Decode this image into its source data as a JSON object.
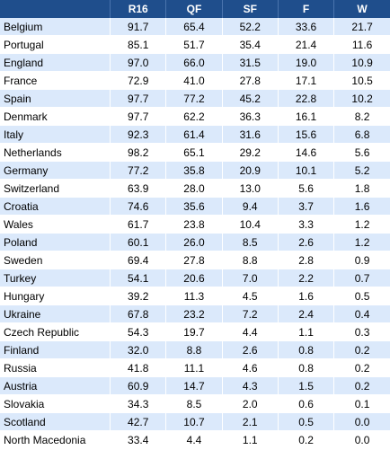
{
  "table": {
    "columns": [
      "",
      "R16",
      "QF",
      "SF",
      "F",
      "W"
    ],
    "rows": [
      {
        "team": "Belgium",
        "r16": "91.7",
        "qf": "65.4",
        "sf": "52.2",
        "f": "33.6",
        "w": "21.7"
      },
      {
        "team": "Portugal",
        "r16": "85.1",
        "qf": "51.7",
        "sf": "35.4",
        "f": "21.4",
        "w": "11.6"
      },
      {
        "team": "England",
        "r16": "97.0",
        "qf": "66.0",
        "sf": "31.5",
        "f": "19.0",
        "w": "10.9"
      },
      {
        "team": "France",
        "r16": "72.9",
        "qf": "41.0",
        "sf": "27.8",
        "f": "17.1",
        "w": "10.5"
      },
      {
        "team": "Spain",
        "r16": "97.7",
        "qf": "77.2",
        "sf": "45.2",
        "f": "22.8",
        "w": "10.2"
      },
      {
        "team": "Denmark",
        "r16": "97.7",
        "qf": "62.2",
        "sf": "36.3",
        "f": "16.1",
        "w": "8.2"
      },
      {
        "team": "Italy",
        "r16": "92.3",
        "qf": "61.4",
        "sf": "31.6",
        "f": "15.6",
        "w": "6.8"
      },
      {
        "team": "Netherlands",
        "r16": "98.2",
        "qf": "65.1",
        "sf": "29.2",
        "f": "14.6",
        "w": "5.6"
      },
      {
        "team": "Germany",
        "r16": "77.2",
        "qf": "35.8",
        "sf": "20.9",
        "f": "10.1",
        "w": "5.2"
      },
      {
        "team": "Switzerland",
        "r16": "63.9",
        "qf": "28.0",
        "sf": "13.0",
        "f": "5.6",
        "w": "1.8"
      },
      {
        "team": "Croatia",
        "r16": "74.6",
        "qf": "35.6",
        "sf": "9.4",
        "f": "3.7",
        "w": "1.6"
      },
      {
        "team": "Wales",
        "r16": "61.7",
        "qf": "23.8",
        "sf": "10.4",
        "f": "3.3",
        "w": "1.2"
      },
      {
        "team": "Poland",
        "r16": "60.1",
        "qf": "26.0",
        "sf": "8.5",
        "f": "2.6",
        "w": "1.2"
      },
      {
        "team": "Sweden",
        "r16": "69.4",
        "qf": "27.8",
        "sf": "8.8",
        "f": "2.8",
        "w": "0.9"
      },
      {
        "team": "Turkey",
        "r16": "54.1",
        "qf": "20.6",
        "sf": "7.0",
        "f": "2.2",
        "w": "0.7"
      },
      {
        "team": "Hungary",
        "r16": "39.2",
        "qf": "11.3",
        "sf": "4.5",
        "f": "1.6",
        "w": "0.5"
      },
      {
        "team": "Ukraine",
        "r16": "67.8",
        "qf": "23.2",
        "sf": "7.2",
        "f": "2.4",
        "w": "0.4"
      },
      {
        "team": "Czech Republic",
        "r16": "54.3",
        "qf": "19.7",
        "sf": "4.4",
        "f": "1.1",
        "w": "0.3"
      },
      {
        "team": "Finland",
        "r16": "32.0",
        "qf": "8.8",
        "sf": "2.6",
        "f": "0.8",
        "w": "0.2"
      },
      {
        "team": "Russia",
        "r16": "41.8",
        "qf": "11.1",
        "sf": "4.6",
        "f": "0.8",
        "w": "0.2"
      },
      {
        "team": "Austria",
        "r16": "60.9",
        "qf": "14.7",
        "sf": "4.3",
        "f": "1.5",
        "w": "0.2"
      },
      {
        "team": "Slovakia",
        "r16": "34.3",
        "qf": "8.5",
        "sf": "2.0",
        "f": "0.6",
        "w": "0.1"
      },
      {
        "team": "Scotland",
        "r16": "42.7",
        "qf": "10.7",
        "sf": "2.1",
        "f": "0.5",
        "w": "0.0"
      },
      {
        "team": "North Macedonia",
        "r16": "33.4",
        "qf": "4.4",
        "sf": "1.1",
        "f": "0.2",
        "w": "0.0"
      }
    ]
  },
  "colors": {
    "header_bg": "#1f4e8c",
    "header_text": "#ffffff",
    "row_alt": "#dbe9fb",
    "row_plain": "#ffffff"
  }
}
